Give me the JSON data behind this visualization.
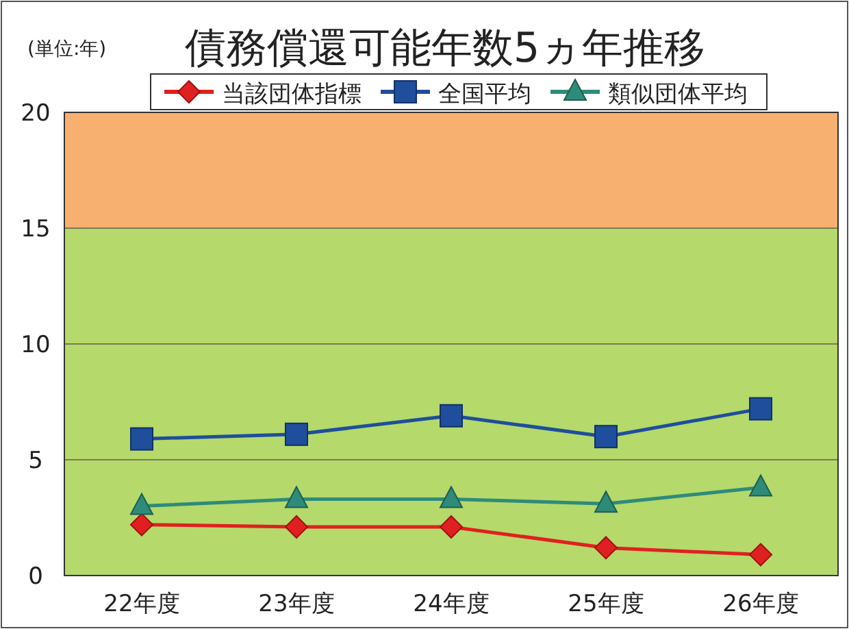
{
  "chart_data": {
    "type": "line",
    "title": "債務償還可能年数5ヵ年推移",
    "annotations": [
      "(単位:年)"
    ],
    "categories": [
      "22年度",
      "23年度",
      "24年度",
      "25年度",
      "26年度"
    ],
    "series": [
      {
        "name": "当該団体指標",
        "color": "#e02020",
        "marker": "diamond",
        "values": [
          2.2,
          2.1,
          2.1,
          1.2,
          0.9
        ]
      },
      {
        "name": "全国平均",
        "color": "#1f4e9c",
        "marker": "square",
        "values": [
          5.9,
          6.1,
          6.9,
          6.0,
          7.2
        ]
      },
      {
        "name": "類似団体平均",
        "color": "#2e8b7a",
        "marker": "triangle",
        "values": [
          3.0,
          3.3,
          3.3,
          3.1,
          3.8
        ]
      }
    ],
    "ylim": [
      0,
      20
    ],
    "yticks": [
      0,
      5,
      10,
      15,
      20
    ],
    "grid": "y",
    "legend": "top",
    "bands": [
      {
        "axis": "y",
        "from": 15,
        "to": 20,
        "color": "#f8b071"
      },
      {
        "axis": "y",
        "from": 0,
        "to": 15,
        "color": "#b5d96a"
      }
    ]
  }
}
